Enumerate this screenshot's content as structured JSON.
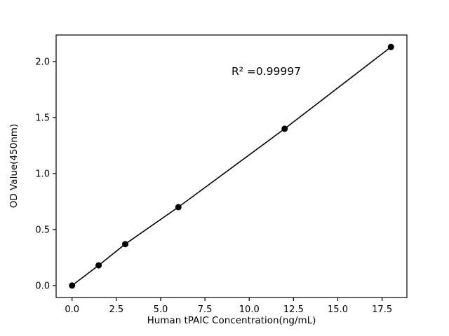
{
  "chart_data": {
    "type": "scatter",
    "x": [
      0,
      1.5,
      3,
      6,
      12,
      18
    ],
    "y": [
      0.0,
      0.18,
      0.37,
      0.7,
      1.4,
      2.13
    ],
    "title": "",
    "xlabel": "Human tPAIC Concentration(ng/mL)",
    "ylabel": "OD Value(450nm)",
    "annotation": "R² =0.99997",
    "annotation_xy": [
      9.0,
      1.88
    ],
    "xlim": [
      -0.9,
      18.9
    ],
    "ylim": [
      -0.107,
      2.237
    ],
    "xticks": [
      0.0,
      2.5,
      5.0,
      7.5,
      10.0,
      12.5,
      15.0,
      17.5
    ],
    "yticks": [
      0.0,
      0.5,
      1.0,
      1.5,
      2.0
    ],
    "tick_decimals": 1,
    "line": true,
    "grid": false,
    "legend": "none",
    "marker_color": "#000000",
    "line_color": "#000000",
    "axis_color": "#000000",
    "background": "#ffffff"
  }
}
